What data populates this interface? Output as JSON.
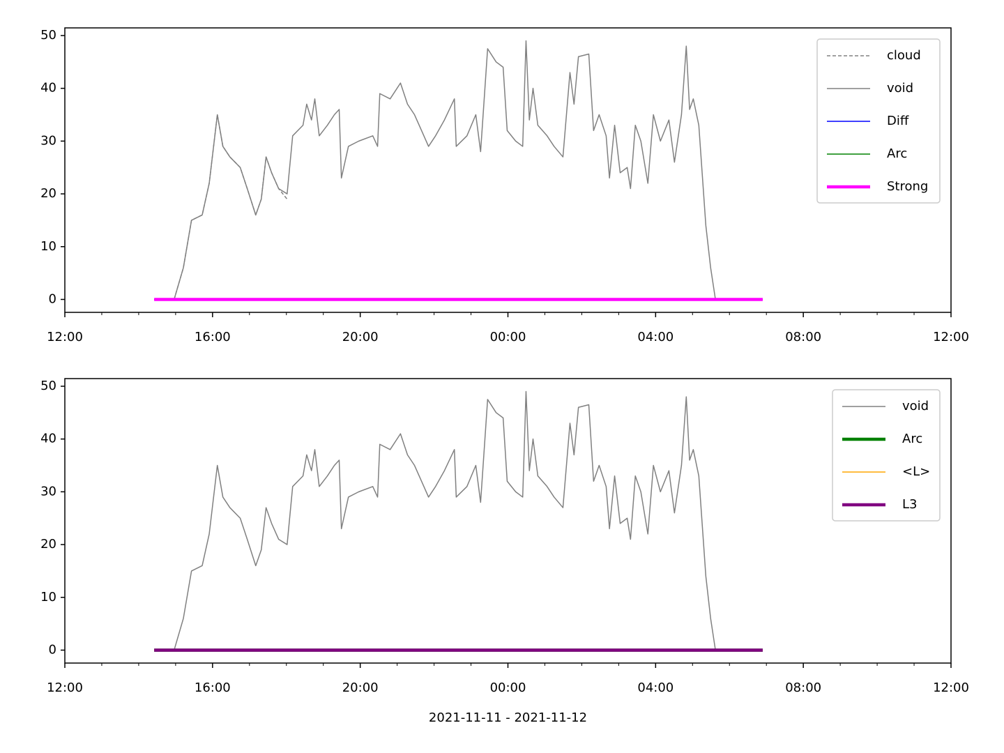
{
  "chart_data": [
    {
      "type": "line",
      "xlim": [
        12,
        36
      ],
      "xticks": [
        {
          "value": 12,
          "label": "12:00"
        },
        {
          "value": 16,
          "label": "16:00"
        },
        {
          "value": 20,
          "label": "20:00"
        },
        {
          "value": 24,
          "label": "00:00"
        },
        {
          "value": 28,
          "label": "04:00"
        },
        {
          "value": 32,
          "label": "08:00"
        },
        {
          "value": 36,
          "label": "12:00"
        }
      ],
      "xminorticks": [
        13,
        14,
        15,
        17,
        18,
        19,
        21,
        22,
        23,
        25,
        26,
        27,
        29,
        30,
        31,
        33,
        34,
        35
      ],
      "ylim": [
        -2.45,
        51.45
      ],
      "yticks": [
        0,
        10,
        20,
        30,
        40,
        50
      ],
      "legend": "upper right",
      "series": [
        {
          "name": "cloud",
          "color": "#808080",
          "linestyle": "dashed",
          "linewidth": 1,
          "x": [
            14.96,
            15.21,
            15.43,
            15.72,
            15.91,
            16.13,
            16.28,
            16.47,
            16.75,
            16.94,
            17.17,
            17.32,
            17.45,
            17.6,
            17.79,
            18.02
          ],
          "values": [
            0,
            6,
            15,
            16,
            22,
            35,
            29,
            27,
            25,
            21,
            16,
            19,
            27,
            24,
            21,
            19
          ]
        },
        {
          "name": "void",
          "color": "#808080",
          "linestyle": "solid",
          "linewidth": 1,
          "x": [
            14.96,
            15.21,
            15.43,
            15.72,
            15.91,
            16.13,
            16.28,
            16.47,
            16.75,
            16.94,
            17.17,
            17.32,
            17.45,
            17.6,
            17.79,
            18.02,
            18.17,
            18.45,
            18.55,
            18.68,
            18.77,
            18.89,
            19.11,
            19.3,
            19.43,
            19.49,
            19.68,
            19.96,
            20.34,
            20.47,
            20.53,
            20.81,
            21.09,
            21.28,
            21.47,
            21.66,
            21.85,
            22.04,
            22.28,
            22.55,
            22.6,
            22.89,
            23.13,
            23.26,
            23.45,
            23.68,
            23.87,
            23.98,
            24.21,
            24.4,
            24.49,
            24.58,
            24.68,
            24.81,
            25.06,
            25.25,
            25.49,
            25.68,
            25.79,
            25.91,
            26.19,
            26.32,
            26.47,
            26.66,
            26.75,
            26.89,
            27.04,
            27.23,
            27.32,
            27.45,
            27.6,
            27.79,
            27.94,
            28.13,
            28.36,
            28.51,
            28.7,
            28.83,
            28.92,
            29.02,
            29.17,
            29.36,
            29.49,
            29.62
          ],
          "values": [
            0,
            6,
            15,
            16,
            22,
            35,
            29,
            27,
            25,
            21,
            16,
            19,
            27,
            24,
            21,
            20,
            31,
            33,
            37,
            34,
            38,
            31,
            33,
            35,
            36,
            23,
            29,
            30,
            31,
            29,
            39,
            38,
            41,
            37,
            35,
            32,
            29,
            31,
            34,
            38,
            29,
            31,
            35,
            28,
            47.5,
            45,
            44,
            32,
            30,
            29,
            49,
            34,
            40,
            33,
            31,
            29,
            27,
            43,
            37,
            46,
            46.5,
            32,
            35,
            31,
            23,
            33,
            24,
            25,
            21,
            33,
            30,
            22,
            35,
            30,
            34,
            26,
            35,
            48,
            36,
            38,
            33,
            14,
            6,
            0
          ]
        },
        {
          "name": "Diff",
          "color": "#0000ff",
          "linestyle": "solid",
          "linewidth": 1,
          "x": [
            14.42,
            30.9
          ],
          "values": [
            0,
            0
          ]
        },
        {
          "name": "Arc",
          "color": "#008000",
          "linestyle": "solid",
          "linewidth": 1,
          "x": [
            14.42,
            30.9
          ],
          "values": [
            0,
            0
          ]
        },
        {
          "name": "Strong",
          "color": "#ff00ff",
          "linestyle": "solid",
          "linewidth": 3,
          "x": [
            14.42,
            30.9
          ],
          "values": [
            0,
            0
          ]
        }
      ]
    },
    {
      "type": "line",
      "xlabel": "2021-11-11 - 2021-11-12",
      "xlim": [
        12,
        36
      ],
      "xticks": [
        {
          "value": 12,
          "label": "12:00"
        },
        {
          "value": 16,
          "label": "16:00"
        },
        {
          "value": 20,
          "label": "20:00"
        },
        {
          "value": 24,
          "label": "00:00"
        },
        {
          "value": 28,
          "label": "04:00"
        },
        {
          "value": 32,
          "label": "08:00"
        },
        {
          "value": 36,
          "label": "12:00"
        }
      ],
      "xminorticks": [
        13,
        14,
        15,
        17,
        18,
        19,
        21,
        22,
        23,
        25,
        26,
        27,
        29,
        30,
        31,
        33,
        34,
        35
      ],
      "ylim": [
        -2.45,
        51.45
      ],
      "yticks": [
        0,
        10,
        20,
        30,
        40,
        50
      ],
      "legend": "upper right",
      "series": [
        {
          "name": "void",
          "color": "#808080",
          "linestyle": "solid",
          "linewidth": 1,
          "x": [
            14.96,
            15.21,
            15.43,
            15.72,
            15.91,
            16.13,
            16.28,
            16.47,
            16.75,
            16.94,
            17.17,
            17.32,
            17.45,
            17.6,
            17.79,
            18.02,
            18.17,
            18.45,
            18.55,
            18.68,
            18.77,
            18.89,
            19.11,
            19.3,
            19.43,
            19.49,
            19.68,
            19.96,
            20.34,
            20.47,
            20.53,
            20.81,
            21.09,
            21.28,
            21.47,
            21.66,
            21.85,
            22.04,
            22.28,
            22.55,
            22.6,
            22.89,
            23.13,
            23.26,
            23.45,
            23.68,
            23.87,
            23.98,
            24.21,
            24.4,
            24.49,
            24.58,
            24.68,
            24.81,
            25.06,
            25.25,
            25.49,
            25.68,
            25.79,
            25.91,
            26.19,
            26.32,
            26.47,
            26.66,
            26.75,
            26.89,
            27.04,
            27.23,
            27.32,
            27.45,
            27.6,
            27.79,
            27.94,
            28.13,
            28.36,
            28.51,
            28.7,
            28.83,
            28.92,
            29.02,
            29.17,
            29.36,
            29.49,
            29.62
          ],
          "values": [
            0,
            6,
            15,
            16,
            22,
            35,
            29,
            27,
            25,
            21,
            16,
            19,
            27,
            24,
            21,
            20,
            31,
            33,
            37,
            34,
            38,
            31,
            33,
            35,
            36,
            23,
            29,
            30,
            31,
            29,
            39,
            38,
            41,
            37,
            35,
            32,
            29,
            31,
            34,
            38,
            29,
            31,
            35,
            28,
            47.5,
            45,
            44,
            32,
            30,
            29,
            49,
            34,
            40,
            33,
            31,
            29,
            27,
            43,
            37,
            46,
            46.5,
            32,
            35,
            31,
            23,
            33,
            24,
            25,
            21,
            33,
            30,
            22,
            35,
            30,
            34,
            26,
            35,
            48,
            36,
            38,
            33,
            14,
            6,
            0
          ]
        },
        {
          "name": "Arc",
          "color": "#008000",
          "linestyle": "solid",
          "linewidth": 3,
          "x": [
            14.42,
            30.9
          ],
          "values": [
            0,
            0
          ]
        },
        {
          "name": "<L>",
          "color": "#ffa500",
          "linestyle": "solid",
          "linewidth": 1,
          "x": [
            14.42,
            30.9
          ],
          "values": [
            0,
            0
          ]
        },
        {
          "name": "L3",
          "color": "#800080",
          "linestyle": "solid",
          "linewidth": 3,
          "x": [
            14.42,
            30.9
          ],
          "values": [
            0,
            0
          ]
        }
      ]
    }
  ]
}
